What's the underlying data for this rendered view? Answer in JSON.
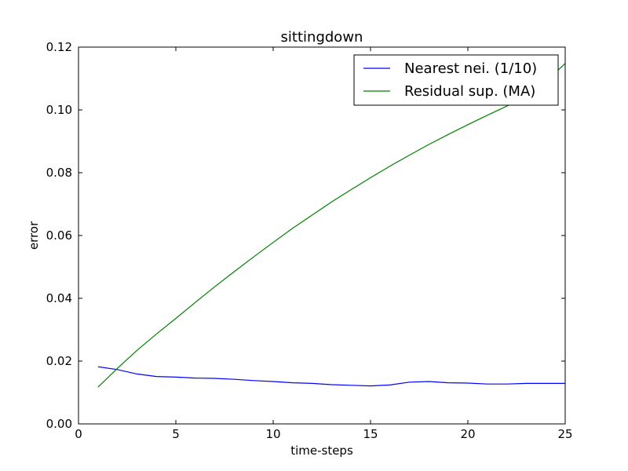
{
  "chart_data": {
    "type": "line",
    "title": "sittingdown",
    "xlabel": "time-steps",
    "ylabel": "error",
    "xlim": [
      0,
      25
    ],
    "ylim": [
      0,
      0.12
    ],
    "xticks": [
      0,
      5,
      10,
      15,
      20,
      25
    ],
    "xtick_labels": [
      "0",
      "5",
      "10",
      "15",
      "20",
      "25"
    ],
    "yticks": [
      0,
      0.02,
      0.04,
      0.06,
      0.08,
      0.1,
      0.12
    ],
    "ytick_labels": [
      "0.00",
      "0.02",
      "0.04",
      "0.06",
      "0.08",
      "0.10",
      "0.12"
    ],
    "grid": false,
    "legend_position": "top-right",
    "x": [
      1,
      2,
      3,
      4,
      5,
      6,
      7,
      8,
      9,
      10,
      11,
      12,
      13,
      14,
      15,
      16,
      17,
      18,
      19,
      20,
      21,
      22,
      23,
      24,
      25
    ],
    "series": [
      {
        "name": "Nearest nei. (1/10)",
        "color": "#0000ff",
        "values": [
          0.0182,
          0.0173,
          0.0159,
          0.0151,
          0.0149,
          0.0146,
          0.0145,
          0.0142,
          0.0138,
          0.0135,
          0.0131,
          0.0129,
          0.0125,
          0.0123,
          0.0121,
          0.0124,
          0.0133,
          0.0135,
          0.0131,
          0.013,
          0.0127,
          0.0127,
          0.0129,
          0.0129,
          0.0129
        ]
      },
      {
        "name": "Residual sup. (MA)",
        "color": "#008000",
        "values": [
          0.0117,
          0.0177,
          0.0234,
          0.0286,
          0.0336,
          0.0387,
          0.0437,
          0.0485,
          0.0532,
          0.0578,
          0.0623,
          0.0665,
          0.0707,
          0.0746,
          0.0784,
          0.0821,
          0.0856,
          0.089,
          0.0922,
          0.0953,
          0.0983,
          0.1012,
          0.1043,
          0.109,
          0.1148
        ]
      }
    ]
  }
}
